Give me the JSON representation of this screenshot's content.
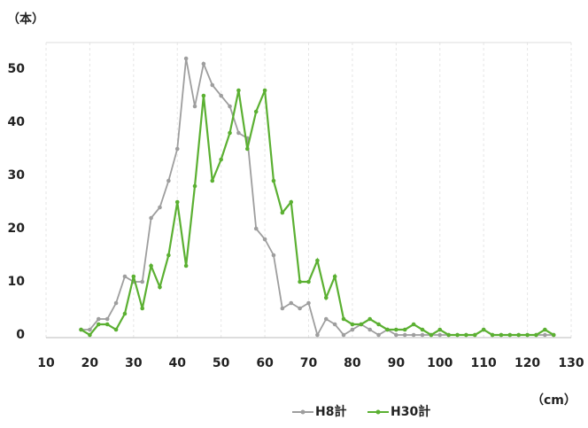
{
  "chart_data": {
    "type": "line",
    "y_label": "（本）",
    "x_label": "（cm）",
    "x": [
      18,
      20,
      22,
      24,
      26,
      28,
      30,
      32,
      34,
      36,
      38,
      40,
      42,
      44,
      46,
      48,
      50,
      52,
      54,
      56,
      58,
      60,
      62,
      64,
      66,
      68,
      70,
      72,
      74,
      76,
      78,
      80,
      82,
      84,
      86,
      88,
      90,
      92,
      94,
      96,
      98,
      100,
      102,
      104,
      106,
      108,
      110,
      112,
      114,
      116,
      118,
      120,
      122,
      124,
      126
    ],
    "series": [
      {
        "name": "H8計",
        "color": "#9e9e9e",
        "values": [
          1,
          1,
          3,
          3,
          6,
          11,
          10,
          10,
          22,
          24,
          29,
          35,
          52,
          43,
          51,
          47,
          45,
          43,
          38,
          37,
          20,
          18,
          15,
          5,
          6,
          5,
          6,
          0,
          3,
          2,
          0,
          1,
          2,
          1,
          0,
          1,
          0,
          0,
          0,
          0,
          0,
          0,
          0,
          0,
          0,
          0,
          1,
          0,
          0,
          0,
          0,
          0,
          0,
          0,
          0
        ]
      },
      {
        "name": "H30計",
        "color": "#5bb032",
        "values": [
          1,
          0,
          2,
          2,
          1,
          4,
          11,
          5,
          13,
          9,
          15,
          25,
          13,
          28,
          45,
          29,
          33,
          38,
          46,
          35,
          42,
          46,
          29,
          23,
          25,
          10,
          10,
          14,
          7,
          11,
          3,
          2,
          2,
          3,
          2,
          1,
          1,
          1,
          2,
          1,
          0,
          1,
          0,
          0,
          0,
          0,
          1,
          0,
          0,
          0,
          0,
          0,
          0,
          1,
          0
        ]
      }
    ],
    "xlim": [
      10,
      130
    ],
    "xticks": [
      10,
      20,
      30,
      40,
      50,
      60,
      70,
      80,
      90,
      100,
      110,
      120,
      130
    ],
    "ylim": [
      0,
      55
    ],
    "yticks": [
      0,
      10,
      20,
      30,
      40,
      50
    ],
    "grid": true,
    "legend": "bottom"
  }
}
